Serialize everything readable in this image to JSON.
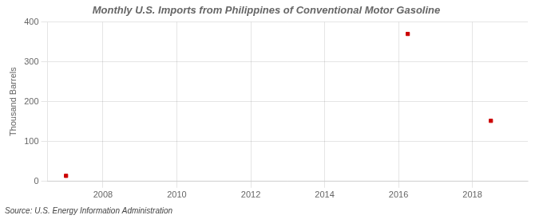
{
  "chart_data": {
    "type": "scatter",
    "title": "Monthly U.S. Imports from Philippines of Conventional Motor Gasoline",
    "ylabel": "Thousand Barrels",
    "source": "Source: U.S. Energy Information Administration",
    "x": [
      2007.0,
      2016.25,
      2018.5
    ],
    "values": [
      14,
      370,
      152
    ],
    "color": "#cc0000",
    "marker": "square",
    "xlim": [
      2006.5,
      2019.5
    ],
    "xticks": [
      2008,
      2010,
      2012,
      2014,
      2016,
      2018
    ],
    "ylim": [
      0,
      400
    ],
    "yticks": [
      0,
      100,
      200,
      300,
      400
    ],
    "grid": true
  }
}
